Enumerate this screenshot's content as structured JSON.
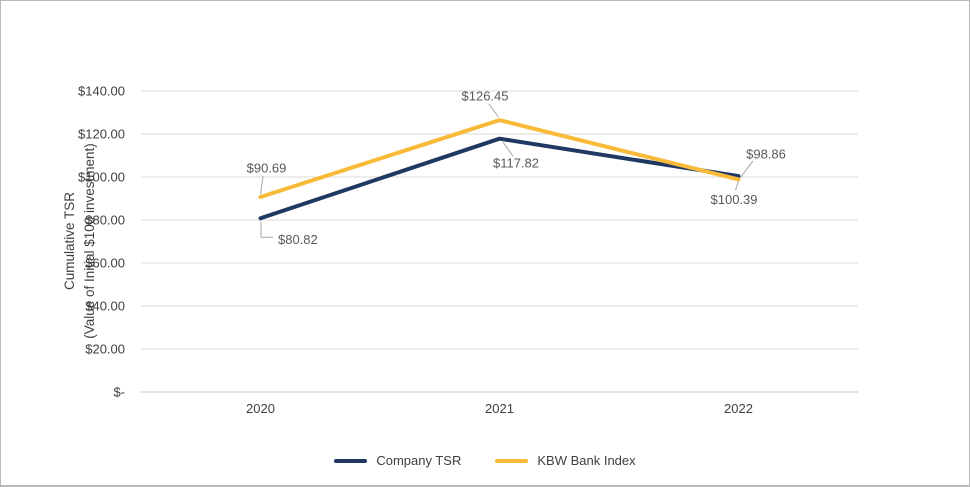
{
  "chart_data": {
    "type": "line",
    "title": "",
    "categories": [
      "2020",
      "2021",
      "2022"
    ],
    "series": [
      {
        "name": "Company TSR",
        "color": "#1F3864",
        "values": [
          80.82,
          117.82,
          100.39
        ],
        "point_labels": [
          "$80.82",
          "$117.82",
          "$100.39"
        ]
      },
      {
        "name": "KBW Bank Index",
        "color": "#F8BA38",
        "values": [
          90.69,
          126.45,
          98.86
        ],
        "point_labels": [
          "$90.69",
          "$126.45",
          "$98.86"
        ]
      }
    ],
    "xlabel": "",
    "ylabel_line1": "Cumulative TSR",
    "ylabel_line2": "(Value of Initial $100 investment)",
    "ylim": [
      0,
      140
    ],
    "yticks": {
      "values": [
        0,
        20,
        40,
        60,
        80,
        100,
        120,
        140
      ],
      "labels": [
        "$-",
        "$20.00",
        "$40.00",
        "$60.00",
        "$80.00",
        "$100.00",
        "$120.00",
        "$140.00"
      ]
    },
    "grid": true,
    "legend_position": "bottom",
    "colors": {
      "gridline": "#DADADA",
      "axis_line": "#C6C6C6",
      "leader_line": "#A6A6A6",
      "tick_text": "#404040",
      "data_label_text": "#595959"
    }
  }
}
